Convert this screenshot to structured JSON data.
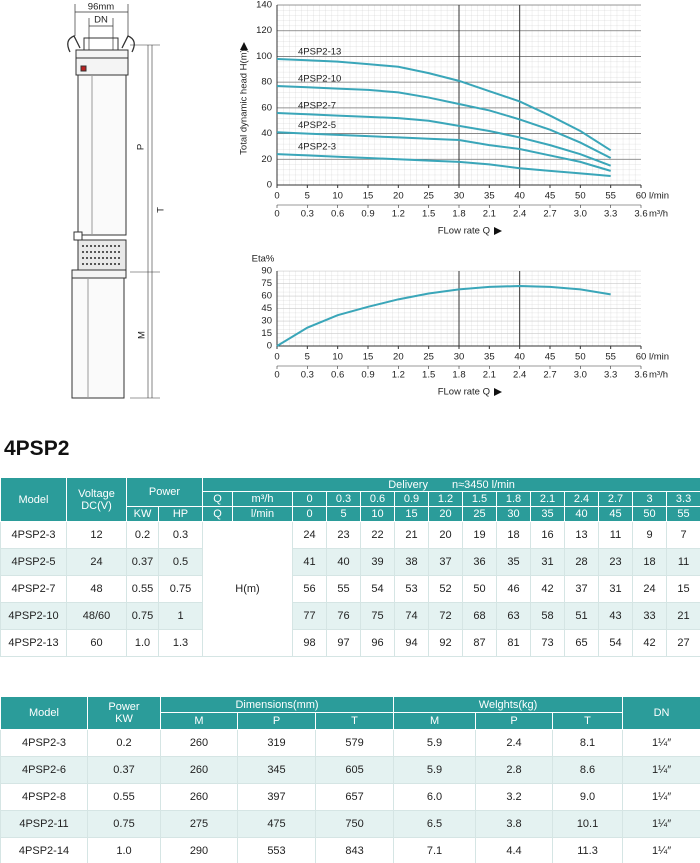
{
  "drawing": {
    "width_label": "96mm",
    "dn_label": "DN",
    "p_label": "P",
    "t_label": "T",
    "m_label": "M"
  },
  "head_chart": {
    "type": "line",
    "y_label": "Total dynamic head H(m)",
    "x_label": "FLow rate Q",
    "x_unit": "l/min",
    "x2_unit": "m³/h",
    "x": [
      0,
      5,
      10,
      15,
      20,
      25,
      30,
      35,
      40,
      45,
      50,
      55
    ],
    "xlim": [
      0,
      60
    ],
    "xticks": [
      0,
      5,
      10,
      15,
      20,
      25,
      30,
      35,
      40,
      45,
      50,
      55,
      60
    ],
    "x2lim": [
      0,
      3.6
    ],
    "x2ticks": [
      0,
      0.3,
      0.6,
      0.9,
      1.2,
      1.5,
      1.8,
      2.1,
      2.4,
      2.7,
      {
        "value": 3,
        "label": "3.0"
      },
      3.3,
      3.6
    ],
    "ylim": [
      0,
      140
    ],
    "yticks": [
      0,
      20,
      40,
      60,
      80,
      100,
      120,
      140
    ],
    "major_x_lines": [
      30,
      40
    ],
    "major_y_grid": true,
    "series": [
      {
        "name": "4PSP2-13",
        "color": "#3aa6b9",
        "values": [
          98,
          97,
          96,
          94,
          92,
          87,
          81,
          73,
          65,
          54,
          42,
          27
        ]
      },
      {
        "name": "4PSP2-10",
        "color": "#3aa6b9",
        "values": [
          77,
          76,
          75,
          74,
          72,
          68,
          63,
          58,
          51,
          43,
          33,
          21
        ]
      },
      {
        "name": "4PSP2-7",
        "color": "#3aa6b9",
        "values": [
          56,
          55,
          54,
          53,
          52,
          50,
          46,
          42,
          37,
          31,
          24,
          15
        ]
      },
      {
        "name": "4PSP2-5",
        "color": "#3aa6b9",
        "values": [
          41,
          40,
          39,
          38,
          37,
          36,
          35,
          31,
          28,
          23,
          18,
          11
        ]
      },
      {
        "name": "4PSP2-3",
        "color": "#3aa6b9",
        "values": [
          24,
          23,
          22,
          21,
          20,
          19,
          18,
          16,
          13,
          11,
          9,
          7
        ]
      }
    ]
  },
  "eta_chart": {
    "type": "line",
    "y_label": "Eta%",
    "x_label": "FLow rate Q",
    "x_unit": "l/min",
    "x2_unit": "m³/h",
    "x": [
      0,
      5,
      10,
      15,
      20,
      25,
      30,
      35,
      40,
      45,
      50,
      55
    ],
    "xlim": [
      0,
      60
    ],
    "xticks": [
      0,
      5,
      10,
      15,
      20,
      25,
      30,
      35,
      40,
      45,
      50,
      55,
      60
    ],
    "x2lim": [
      0,
      3.6
    ],
    "x2ticks": [
      0,
      0.3,
      0.6,
      0.9,
      1.2,
      1.5,
      1.8,
      2.1,
      2.4,
      2.7,
      {
        "value": 3,
        "label": "3.0"
      },
      3.3,
      3.6
    ],
    "ylim": [
      0,
      90
    ],
    "yticks": [
      0,
      15,
      30,
      45,
      60,
      75,
      90
    ],
    "major_x_lines": [
      30,
      40
    ],
    "major_y_grid": false,
    "series": [
      {
        "color": "#3aa6b9",
        "values": [
          0,
          22,
          37,
          47,
          56,
          63,
          68,
          71,
          72,
          71,
          68,
          62
        ]
      }
    ]
  },
  "title": "4PSP2",
  "table1": {
    "header": {
      "model": "Model",
      "voltage": "Voltage DC(V)",
      "power": "Power",
      "kw": "KW",
      "hp": "HP",
      "delivery": "Delivery",
      "speed": "n≈3450 l/min",
      "q_m3h": "Q",
      "q_lmin": "Q",
      "unit_m3h": "m³/h",
      "unit_lmin": "l/min",
      "flow_m3h": [
        "0",
        "0.3",
        "0.6",
        "0.9",
        "1.2",
        "1.5",
        "1.8",
        "2.1",
        "2.4",
        "2.7",
        "3",
        "3.3"
      ],
      "flow_lmin": [
        "0",
        "5",
        "10",
        "15",
        "20",
        "25",
        "30",
        "35",
        "40",
        "45",
        "50",
        "55"
      ]
    },
    "head_label": "H(m)",
    "rows": [
      {
        "model": "4PSP2-3",
        "voltage": "12",
        "kw": "0.2",
        "hp": "0.3",
        "heads": [
          24,
          23,
          22,
          21,
          20,
          19,
          18,
          16,
          13,
          11,
          9,
          7
        ]
      },
      {
        "model": "4PSP2-5",
        "voltage": "24",
        "kw": "0.37",
        "hp": "0.5",
        "heads": [
          41,
          40,
          39,
          38,
          37,
          36,
          35,
          31,
          28,
          23,
          18,
          11
        ]
      },
      {
        "model": "4PSP2-7",
        "voltage": "48",
        "kw": "0.55",
        "hp": "0.75",
        "heads": [
          56,
          55,
          54,
          53,
          52,
          50,
          46,
          42,
          37,
          31,
          24,
          15
        ]
      },
      {
        "model": "4PSP2-10",
        "voltage": "48/60",
        "kw": "0.75",
        "hp": "1",
        "heads": [
          77,
          76,
          75,
          74,
          72,
          68,
          63,
          58,
          51,
          43,
          33,
          21
        ]
      },
      {
        "model": "4PSP2-13",
        "voltage": "60",
        "kw": "1.0",
        "hp": "1.3",
        "heads": [
          98,
          97,
          96,
          94,
          92,
          87,
          81,
          73,
          65,
          54,
          42,
          27
        ]
      }
    ]
  },
  "table2": {
    "header": {
      "model": "Model",
      "power": "Power",
      "power_unit": "KW",
      "dimensions": "Dimensions(mm)",
      "weights": "Welghts(kg)",
      "dn": "DN",
      "dimension_cols": [
        "M",
        "P",
        "T"
      ],
      "weight_cols": [
        "M",
        "P",
        "T"
      ]
    },
    "rows": [
      [
        "4PSP2-3",
        "0.2",
        "260",
        "319",
        "579",
        "5.9",
        "2.4",
        "8.1",
        "1¼″"
      ],
      [
        "4PSP2-6",
        "0.37",
        "260",
        "345",
        "605",
        "5.9",
        "2.8",
        "8.6",
        "1¼″"
      ],
      [
        "4PSP2-8",
        "0.55",
        "260",
        "397",
        "657",
        "6.0",
        "3.2",
        "9.0",
        "1¼″"
      ],
      [
        "4PSP2-11",
        "0.75",
        "275",
        "475",
        "750",
        "6.5",
        "3.8",
        "10.1",
        "1¼″"
      ],
      [
        "4PSP2-14",
        "1.0",
        "290",
        "553",
        "843",
        "7.1",
        "4.4",
        "11.3",
        "1¼″"
      ]
    ]
  }
}
